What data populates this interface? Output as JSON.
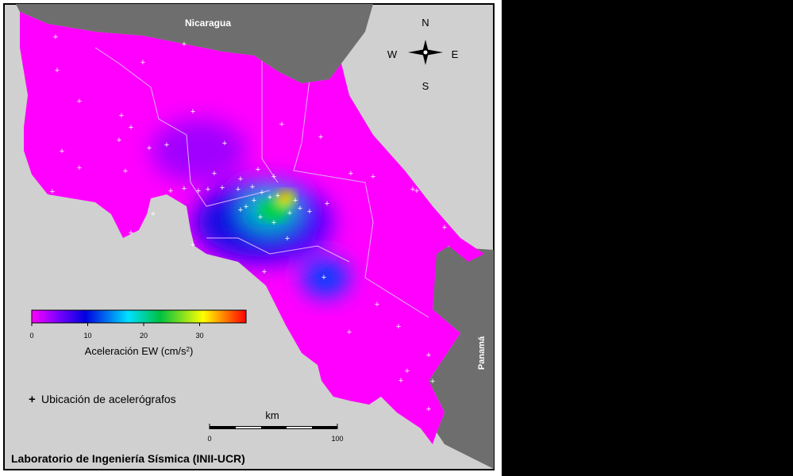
{
  "map": {
    "countries": {
      "north": "Nicaragua",
      "south": "Panamá"
    },
    "compass": {
      "n": "N",
      "s": "S",
      "e": "E",
      "w": "W"
    },
    "colorbar": {
      "ticks": [
        "0",
        "10",
        "20",
        "30"
      ],
      "label": "Aceleración EW (cm/s",
      "label_sup": "2",
      "label_end": ")",
      "colors": [
        "#ff00ff",
        "#8000ff",
        "#0000ff",
        "#00ffff",
        "#00ff00",
        "#ffff00",
        "#ff8000",
        "#ff0000"
      ]
    },
    "legend": {
      "marker": "+",
      "text": "Ubicación de acelerógrafos"
    },
    "scale": {
      "unit": "km",
      "min": "0",
      "max": "100"
    },
    "credit": "Laboratorio de Ingeniería Sísmica (INII-UCR)",
    "colors": {
      "sea": "#d0d0d0",
      "neighbor": "#6e6e6e",
      "background_field": "#ff00ff"
    }
  }
}
